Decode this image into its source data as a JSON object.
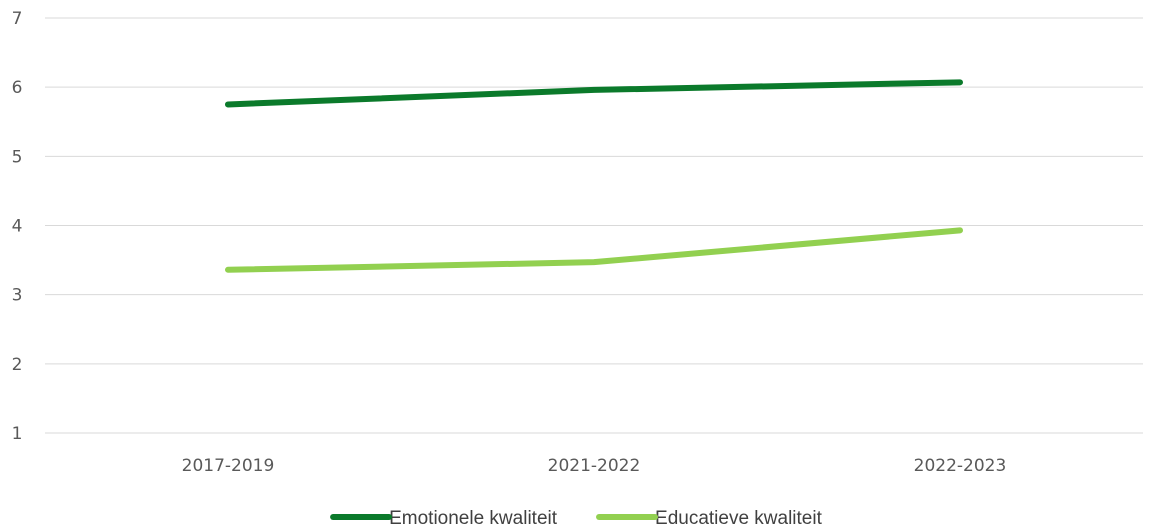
{
  "chart_data": {
    "type": "line",
    "categories": [
      "2017-2019",
      "2021-2022",
      "2022-2023"
    ],
    "series": [
      {
        "name": "Emotionele kwaliteit",
        "values": [
          5.75,
          5.96,
          6.07
        ],
        "color": "#0b7a2b"
      },
      {
        "name": "Educatieve kwaliteit",
        "values": [
          3.36,
          3.47,
          3.93
        ],
        "color": "#92d050"
      }
    ],
    "ylim": [
      1,
      7
    ],
    "yticks": [
      1,
      2,
      3,
      4,
      5,
      6,
      7
    ],
    "grid": true,
    "legend_position": "bottom",
    "gridline_color": "#d9d9d9"
  }
}
